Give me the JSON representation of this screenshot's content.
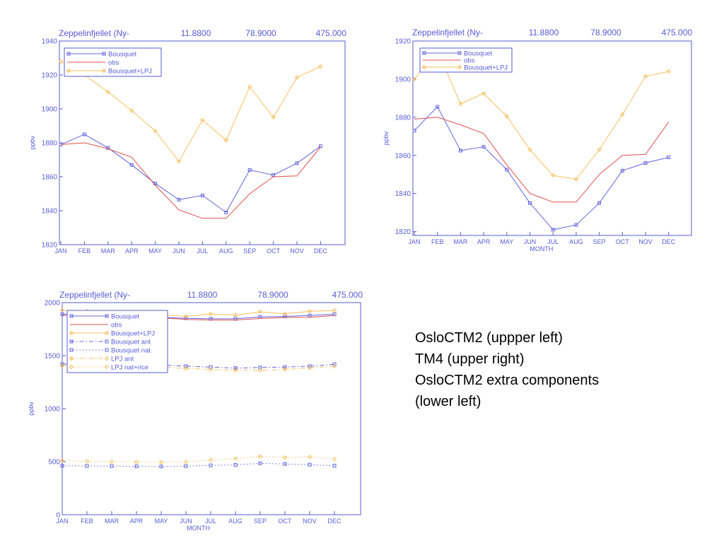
{
  "caption": [
    "OsloCTM2 (uppper left)",
    "TM4 (upper right)",
    "OsloCTM2 extra components",
    "(lower left)"
  ],
  "colors": {
    "axis": "#5a5ad6",
    "bousquet": "#6464e0",
    "obs": "#e05050",
    "lpj": "#f6c060",
    "dark": "#2a2a9a"
  },
  "chart_data": [
    {
      "type": "line",
      "header": [
        "Zeppelinfjellet (Ny-",
        "11.8800",
        "78.9000",
        "475.000"
      ],
      "ylabel": "ppbv",
      "xlabel": "",
      "categories": [
        "JAN",
        "FEB",
        "MAR",
        "APR",
        "MAY",
        "JUN",
        "JUL",
        "AUG",
        "SEP",
        "OCT",
        "NOV",
        "DEC"
      ],
      "ylim": [
        1820,
        1940
      ],
      "yticks": [
        1820,
        1840,
        1860,
        1880,
        1900,
        1920,
        1940
      ],
      "legend_position": "top-left",
      "series": [
        {
          "name": "Bousquet",
          "color": "#6464e0",
          "dash": "solid",
          "marker": "square",
          "values": [
            1879,
            1885,
            1877,
            1867,
            1856,
            1846.5,
            1849,
            1839,
            1864,
            1861,
            1868,
            1878
          ]
        },
        {
          "name": "obs",
          "color": "#e05050",
          "dash": "solid",
          "marker": "none",
          "values": [
            1879,
            1880,
            1876.5,
            1871.5,
            1855,
            1840.5,
            1835.5,
            1835.5,
            1850,
            1860,
            1860.5,
            1877.5
          ]
        },
        {
          "name": "Bousquet+LPJ",
          "color": "#f6c060",
          "dash": "solid",
          "marker": "diamond",
          "values": [
            1928,
            1920,
            1910,
            1899,
            1887,
            1869,
            1893.5,
            1881.5,
            1913,
            1895,
            1918.5,
            1925
          ]
        }
      ]
    },
    {
      "type": "line",
      "header": [
        "Zeppelinfjellet (Ny-",
        "11.8800",
        "78.9000",
        "475.000"
      ],
      "ylabel": "ppbv",
      "xlabel": "MONTH",
      "categories": [
        "JAN",
        "FEB",
        "MAR",
        "APR",
        "MAY",
        "JUN",
        "JUL",
        "AUG",
        "SEP",
        "OCT",
        "NOV",
        "DEC"
      ],
      "ylim": [
        1818,
        1920
      ],
      "yticks": [
        1820,
        1840,
        1860,
        1880,
        1900,
        1920
      ],
      "legend_position": "top-left",
      "series": [
        {
          "name": "Bousquet",
          "color": "#6464e0",
          "dash": "solid",
          "marker": "square",
          "values": [
            1873,
            1885.5,
            1862.5,
            1864.5,
            1852.5,
            1835,
            1821,
            1823.5,
            1835,
            1852,
            1856,
            1859
          ]
        },
        {
          "name": "obs",
          "color": "#e05050",
          "dash": "solid",
          "marker": "none",
          "values": [
            1879,
            1880,
            1876,
            1871.5,
            1855,
            1840,
            1835.5,
            1835.5,
            1850,
            1860,
            1860.5,
            1877.5
          ]
        },
        {
          "name": "Bousquet+LPJ",
          "color": "#f6c060",
          "dash": "solid",
          "marker": "diamond",
          "values": [
            1900,
            1915,
            1887,
            1892.5,
            1880.5,
            1863,
            1849.5,
            1847.5,
            1863,
            1881.5,
            1901.5,
            1904
          ]
        }
      ]
    },
    {
      "type": "line",
      "header": [
        "Zeppelinfjellet (Ny-",
        "11.8800",
        "78.9000",
        "475.000"
      ],
      "ylabel": "ppbv",
      "xlabel": "MONTH",
      "categories": [
        "JAN",
        "FEB",
        "MAR",
        "APR",
        "MAY",
        "JUN",
        "JUL",
        "AUG",
        "SEP",
        "OCT",
        "NOV",
        "DEC"
      ],
      "ylim": [
        0,
        2000
      ],
      "yticks": [
        0,
        500,
        1000,
        1500,
        2000
      ],
      "legend_position": "top-left",
      "series": [
        {
          "name": "Bousquet",
          "color": "#6464e0",
          "dash": "solid",
          "marker": "square",
          "values": [
            1890,
            1895,
            1882,
            1872,
            1862,
            1852,
            1847,
            1847,
            1865,
            1870,
            1878,
            1890
          ]
        },
        {
          "name": "obs",
          "color": "#e05050",
          "dash": "solid",
          "marker": "none",
          "values": [
            1880,
            1880,
            1876,
            1870,
            1856,
            1842,
            1836,
            1836,
            1850,
            1860,
            1862,
            1878
          ]
        },
        {
          "name": "Bousquet+LPJ",
          "color": "#f6c060",
          "dash": "solid",
          "marker": "diamond",
          "values": [
            1928,
            1920,
            1910,
            1899,
            1887,
            1870,
            1893,
            1882,
            1913,
            1895,
            1918,
            1925
          ]
        },
        {
          "name": "Bousquet ant",
          "color": "#6464e0",
          "dash": "dashdot",
          "marker": "square",
          "values": [
            1420,
            1423,
            1422,
            1418,
            1412,
            1400,
            1392,
            1383,
            1388,
            1392,
            1400,
            1418
          ]
        },
        {
          "name": "Bousquet nat",
          "color": "#6464e0",
          "dash": "dotted",
          "marker": "square",
          "values": [
            462,
            460,
            458,
            456,
            455,
            458,
            465,
            470,
            485,
            478,
            472,
            462
          ]
        },
        {
          "name": "LPJ ant",
          "color": "#f6c060",
          "dash": "dashdot",
          "marker": "diamond",
          "values": [
            1405,
            1405,
            1403,
            1398,
            1392,
            1380,
            1370,
            1362,
            1362,
            1370,
            1385,
            1400
          ]
        },
        {
          "name": "LPJ nat+rice",
          "color": "#f6c060",
          "dash": "dotted",
          "marker": "diamond",
          "values": [
            510,
            505,
            500,
            497,
            495,
            498,
            515,
            530,
            550,
            540,
            545,
            525
          ]
        }
      ]
    }
  ]
}
